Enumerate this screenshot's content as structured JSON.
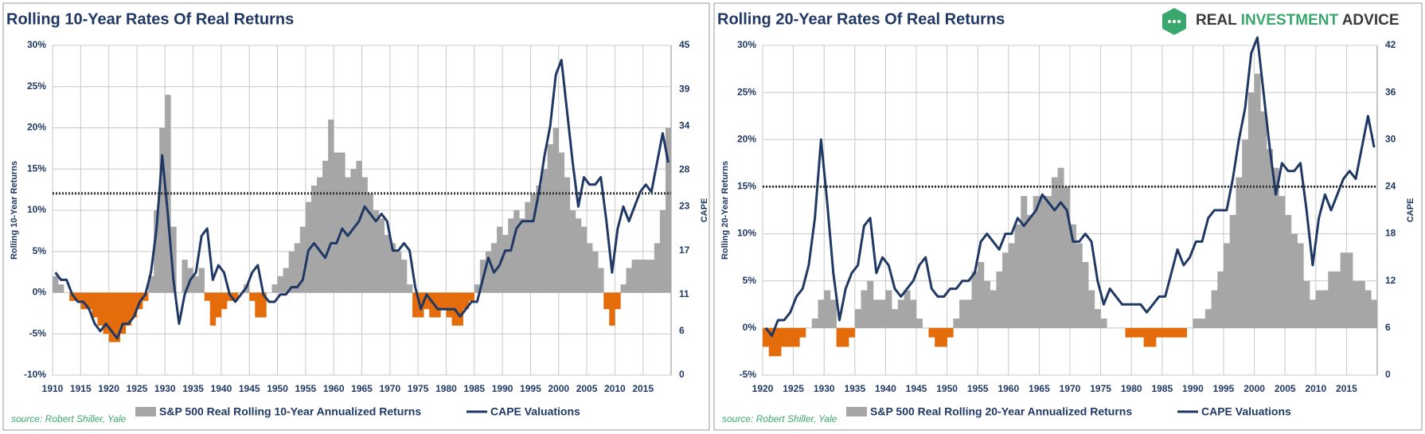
{
  "logo": {
    "parts": [
      "REAL",
      "INVESTMENT",
      "ADVICE"
    ],
    "colors": [
      "#3a3a3a",
      "#3aa76d",
      "#3a3a3a"
    ]
  },
  "chart_data": [
    {
      "type": "area-line",
      "title": "Rolling 10-Year Rates Of Real Returns",
      "y_label": "Rolling 10-Year Returns",
      "y2_label": "CAPE",
      "source": "source: Robert Shiller, Yale",
      "x": [
        1910,
        1911,
        1912,
        1913,
        1914,
        1915,
        1916,
        1917,
        1918,
        1919,
        1920,
        1921,
        1922,
        1923,
        1924,
        1925,
        1926,
        1927,
        1928,
        1929,
        1930,
        1931,
        1932,
        1933,
        1934,
        1935,
        1936,
        1937,
        1938,
        1939,
        1940,
        1941,
        1942,
        1943,
        1944,
        1945,
        1946,
        1947,
        1948,
        1949,
        1950,
        1951,
        1952,
        1953,
        1954,
        1955,
        1956,
        1957,
        1958,
        1959,
        1960,
        1961,
        1962,
        1963,
        1964,
        1965,
        1966,
        1967,
        1968,
        1969,
        1970,
        1971,
        1972,
        1973,
        1974,
        1975,
        1976,
        1977,
        1978,
        1979,
        1980,
        1981,
        1982,
        1983,
        1984,
        1985,
        1986,
        1987,
        1988,
        1989,
        1990,
        1991,
        1992,
        1993,
        1994,
        1995,
        1996,
        1997,
        1998,
        1999,
        2000,
        2001,
        2002,
        2003,
        2004,
        2005,
        2006,
        2007,
        2008,
        2009,
        2010,
        2011,
        2012,
        2013,
        2014,
        2015,
        2016,
        2017,
        2018,
        2019
      ],
      "series": [
        {
          "name": "S&P 500 Real Rolling 10-Year Annualized Returns",
          "color": "#a6a6a6",
          "negative_color": "#e46c0a",
          "values": [
            2,
            1,
            0,
            -1,
            -1,
            -2,
            -2,
            -3,
            -4,
            -5,
            -6,
            -6,
            -5,
            -4,
            -3,
            -2,
            -1,
            2,
            10,
            20,
            24,
            8,
            0,
            4,
            3,
            2,
            3,
            -1,
            -4,
            -3,
            -2,
            -1,
            -1,
            0,
            1,
            -1,
            -3,
            -3,
            0,
            1,
            2,
            3,
            5,
            6,
            8,
            11,
            13,
            14,
            16,
            21,
            17,
            17,
            14,
            15,
            16,
            14,
            12,
            10,
            9,
            7,
            6,
            5,
            4,
            1,
            -3,
            -3,
            -2,
            -3,
            -3,
            -2,
            -3,
            -4,
            -4,
            -2,
            -1,
            1,
            4,
            5,
            6,
            8,
            7,
            9,
            10,
            9,
            11,
            12,
            13,
            15,
            18,
            20,
            17,
            14,
            10,
            9,
            8,
            6,
            5,
            3,
            -2,
            -4,
            -2,
            1,
            3,
            4,
            4,
            4,
            4,
            6,
            10,
            20
          ]
        },
        {
          "name": "CAPE Valuations",
          "color": "#1f3864",
          "axis": "y2",
          "values": [
            14,
            13,
            13,
            11,
            10,
            10,
            9,
            7,
            6,
            7,
            6,
            5,
            7,
            7,
            8,
            10,
            11,
            14,
            20,
            30,
            22,
            13,
            7,
            11,
            13,
            14,
            19,
            20,
            13,
            15,
            14,
            11,
            10,
            11,
            12,
            14,
            15,
            11,
            10,
            10,
            11,
            11,
            12,
            12,
            13,
            17,
            18,
            17,
            16,
            18,
            18,
            20,
            19,
            20,
            21,
            23,
            22,
            21,
            22,
            21,
            17,
            17,
            18,
            17,
            12,
            9,
            11,
            10,
            9,
            9,
            9,
            9,
            8,
            9,
            10,
            10,
            13,
            16,
            14,
            15,
            17,
            17,
            20,
            21,
            21,
            21,
            25,
            30,
            34,
            41,
            43,
            36,
            29,
            23,
            27,
            26,
            26,
            27,
            21,
            14,
            20,
            23,
            21,
            23,
            25,
            26,
            25,
            29,
            33,
            29
          ]
        }
      ],
      "reference_line": {
        "value": 24.8,
        "axis": "y2"
      },
      "xlim": [
        1910,
        2020
      ],
      "xticks": [
        1910,
        1915,
        1920,
        1925,
        1930,
        1935,
        1940,
        1945,
        1950,
        1955,
        1960,
        1965,
        1970,
        1975,
        1980,
        1985,
        1990,
        1995,
        2000,
        2005,
        2010,
        2015
      ],
      "ylim": [
        -10,
        30
      ],
      "yticks": [
        {
          "value": -10,
          "label": "-10%"
        },
        {
          "value": -5,
          "label": "-5%"
        },
        {
          "value": 0,
          "label": "0%"
        },
        {
          "value": 5,
          "label": "5%"
        },
        {
          "value": 10,
          "label": "10%"
        },
        {
          "value": 15,
          "label": "15%"
        },
        {
          "value": 20,
          "label": "20%"
        },
        {
          "value": 25,
          "label": "25%"
        },
        {
          "value": 30,
          "label": "30%"
        }
      ],
      "y2lim": [
        0,
        45
      ],
      "y2ticks": [
        0,
        6,
        11,
        17,
        23,
        28,
        34,
        39,
        45
      ],
      "grid": true
    },
    {
      "type": "area-line",
      "title": "Rolling 20-Year Rates Of Real Returns",
      "y_label": "Rolling 20-Year Returns",
      "y2_label": "CAPE",
      "source": "source: Robert Shiller, Yale",
      "x": [
        1920,
        1921,
        1922,
        1923,
        1924,
        1925,
        1926,
        1927,
        1928,
        1929,
        1930,
        1931,
        1932,
        1933,
        1934,
        1935,
        1936,
        1937,
        1938,
        1939,
        1940,
        1941,
        1942,
        1943,
        1944,
        1945,
        1946,
        1947,
        1948,
        1949,
        1950,
        1951,
        1952,
        1953,
        1954,
        1955,
        1956,
        1957,
        1958,
        1959,
        1960,
        1961,
        1962,
        1963,
        1964,
        1965,
        1966,
        1967,
        1968,
        1969,
        1970,
        1971,
        1972,
        1973,
        1974,
        1975,
        1976,
        1977,
        1978,
        1979,
        1980,
        1981,
        1982,
        1983,
        1984,
        1985,
        1986,
        1987,
        1988,
        1989,
        1990,
        1991,
        1992,
        1993,
        1994,
        1995,
        1996,
        1997,
        1998,
        1999,
        2000,
        2001,
        2002,
        2003,
        2004,
        2005,
        2006,
        2007,
        2008,
        2009,
        2010,
        2011,
        2012,
        2013,
        2014,
        2015,
        2016,
        2017,
        2018,
        2019
      ],
      "series": [
        {
          "name": "S&P 500 Real Rolling 20-Year Annualized Returns",
          "color": "#a6a6a6",
          "negative_color": "#e46c0a",
          "values": [
            -2,
            -3,
            -3,
            -2,
            -2,
            -2,
            -1,
            0,
            1,
            3,
            4,
            3,
            -2,
            -2,
            -1,
            2,
            4,
            5,
            3,
            3,
            4,
            2,
            3,
            4,
            3,
            1,
            0,
            -1,
            -2,
            -2,
            -1,
            1,
            3,
            3,
            6,
            7,
            5,
            4,
            6,
            8,
            9,
            11,
            14,
            12,
            14,
            14,
            14,
            16,
            17,
            15,
            11,
            9,
            7,
            4,
            2,
            1,
            0,
            0,
            0,
            -1,
            -1,
            -1,
            -2,
            -2,
            -1,
            -1,
            -1,
            -1,
            -1,
            0,
            1,
            1,
            2,
            4,
            6,
            9,
            12,
            16,
            20,
            25,
            27,
            23,
            19,
            17,
            14,
            12,
            10,
            9,
            5,
            3,
            4,
            4,
            6,
            6,
            8,
            8,
            5,
            5,
            4,
            3
          ]
        },
        {
          "name": "CAPE Valuations",
          "color": "#1f3864",
          "axis": "y2",
          "values": [
            6,
            5,
            7,
            7,
            8,
            10,
            11,
            14,
            20,
            30,
            22,
            13,
            7,
            11,
            13,
            14,
            19,
            20,
            13,
            15,
            14,
            11,
            10,
            11,
            12,
            14,
            15,
            11,
            10,
            10,
            11,
            11,
            12,
            12,
            13,
            17,
            18,
            17,
            16,
            18,
            18,
            20,
            19,
            20,
            21,
            23,
            22,
            21,
            22,
            21,
            17,
            17,
            18,
            17,
            12,
            9,
            11,
            10,
            9,
            9,
            9,
            9,
            8,
            9,
            10,
            10,
            13,
            16,
            14,
            15,
            17,
            17,
            20,
            21,
            21,
            21,
            25,
            30,
            34,
            41,
            43,
            36,
            29,
            23,
            27,
            26,
            26,
            27,
            21,
            14,
            20,
            23,
            21,
            23,
            25,
            26,
            25,
            29,
            33,
            29
          ]
        }
      ],
      "reference_line": {
        "value": 24,
        "axis": "y2"
      },
      "xlim": [
        1920,
        2020
      ],
      "xticks": [
        1920,
        1925,
        1930,
        1935,
        1940,
        1945,
        1950,
        1955,
        1960,
        1965,
        1970,
        1975,
        1980,
        1985,
        1990,
        1995,
        2000,
        2005,
        2010,
        2015
      ],
      "ylim": [
        -5,
        30
      ],
      "yticks": [
        {
          "value": -5,
          "label": "-5%"
        },
        {
          "value": 0,
          "label": "0%"
        },
        {
          "value": 5,
          "label": "5%"
        },
        {
          "value": 10,
          "label": "10%"
        },
        {
          "value": 15,
          "label": "15%"
        },
        {
          "value": 20,
          "label": "20%"
        },
        {
          "value": 25,
          "label": "25%"
        },
        {
          "value": 30,
          "label": "30%"
        }
      ],
      "y2lim": [
        0,
        42
      ],
      "y2ticks": [
        0,
        6,
        12,
        18,
        24,
        30,
        36,
        42
      ],
      "grid": true
    }
  ]
}
